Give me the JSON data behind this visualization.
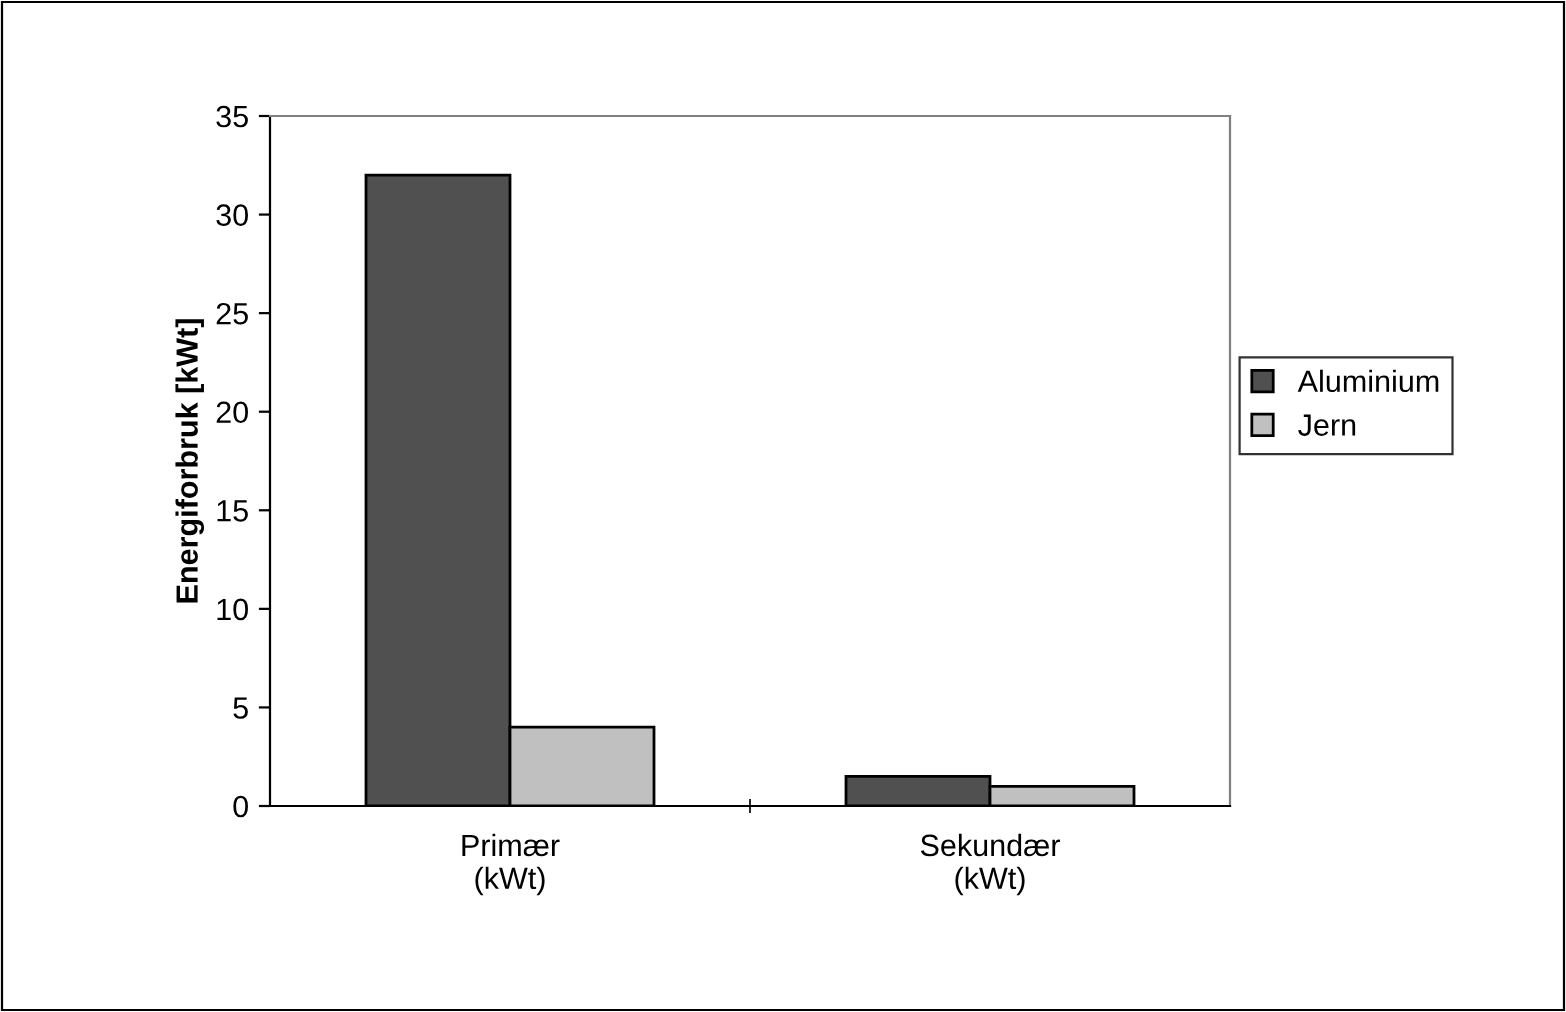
{
  "chart_data": {
    "type": "bar",
    "ylabel": "Energiforbruk [kWt]",
    "categories": [
      "Primær\n(kWt)",
      "Sekundær\n(kWt)"
    ],
    "series": [
      {
        "name": "Aluminium",
        "color": "#505050",
        "values": [
          32,
          1.5
        ]
      },
      {
        "name": "Jern",
        "color": "#c0c0c0",
        "values": [
          4,
          1
        ]
      }
    ],
    "ylim": [
      0,
      35
    ],
    "yticks": [
      0,
      5,
      10,
      15,
      20,
      25,
      30,
      35
    ],
    "grid": false,
    "legend": "right"
  }
}
